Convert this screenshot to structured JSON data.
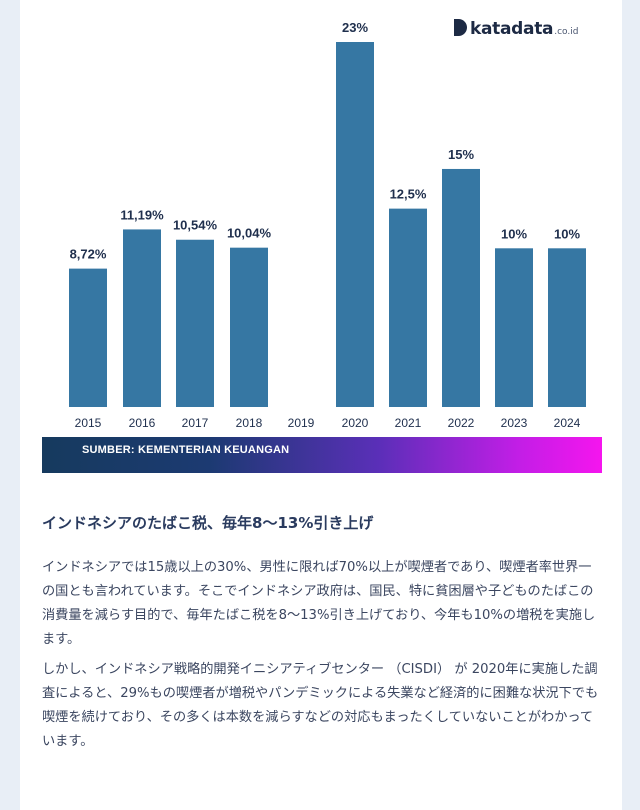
{
  "brand": {
    "name": "katadata",
    "tld": ".co.id"
  },
  "chart_data": {
    "type": "bar",
    "categories": [
      "2015",
      "2016",
      "2017",
      "2018",
      "2019",
      "2020",
      "2021",
      "2022",
      "2023",
      "2024"
    ],
    "values": [
      8.72,
      11.19,
      10.54,
      10.04,
      null,
      23,
      12.5,
      15,
      10,
      10
    ],
    "labels": [
      "8,72%",
      "11,19%",
      "10,54%",
      "10,04%",
      "",
      "23%",
      "12,5%",
      "15%",
      "10%",
      "10%"
    ],
    "ylim": [
      0,
      23
    ],
    "bar_color": "#3677a3",
    "grid": false,
    "legend": "none"
  },
  "source": "SUMBER: KEMENTERIAN KEUANGAN",
  "article": {
    "title": "インドネシアのたばこ税、毎年8〜13%引き上げ",
    "paragraphs": [
      "インドネシアでは15歳以上の30%、男性に限れば70%以上が喫煙者であり、喫煙者率世界一の国とも言われています。そこでインドネシア政府は、国民、特に貧困層や子どものたばこの消費量を減らす目的で、毎年たばこ税を8〜13%引き上げており、今年も10%の増税を実施します。",
      "しかし、インドネシア戦略的開発イニシアティブセンター （CISDI） が 2020年に実施した調査によると、29%もの喫煙者が増税やパンデミックによる失業など経済的に困難な状況下でも喫煙を続けており、その多くは本数を減らすなどの対応もまったくしていないことがわかっています。"
    ]
  }
}
